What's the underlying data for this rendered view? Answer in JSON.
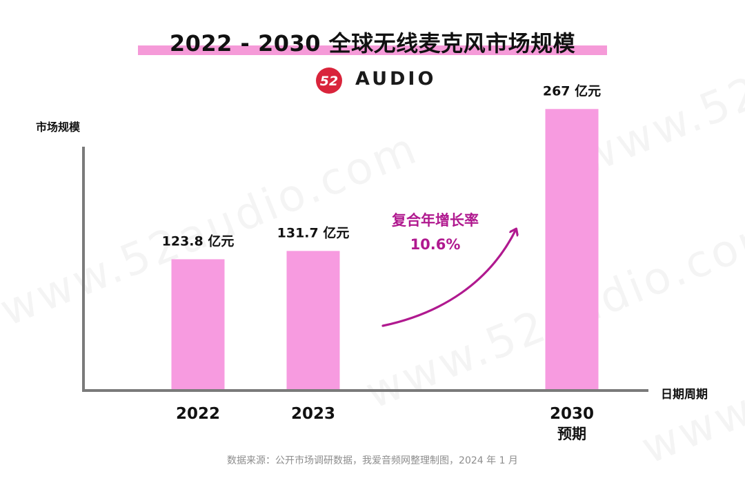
{
  "title": "2022 - 2030 全球无线麦克风市场规模",
  "logo": {
    "mark_text": "52",
    "text": "AUDIO"
  },
  "watermark_text": "www.52audio.com",
  "source_note": "数据来源：公开市场调研数据，我爱音频网整理制图，2024 年 1 月",
  "colors": {
    "bar": "#f79be0",
    "accent": "#b0198f",
    "title_highlight": "#f59ad8",
    "axis": "#7a7a7a",
    "logo_red": "#d9243b"
  },
  "annotation": {
    "line1": "复合年增长率",
    "line2": "10.6%"
  },
  "chart_data": {
    "type": "bar",
    "ylabel": "市场规模",
    "xlabel": "日期周期",
    "categories": [
      "2022",
      "2023",
      "2030"
    ],
    "category_sublabels": [
      "",
      "",
      "预期"
    ],
    "values": [
      123.8,
      131.7,
      267
    ],
    "value_labels": [
      "123.8 亿元",
      "131.7 亿元",
      "267 亿元"
    ],
    "unit": "亿元",
    "ylim": [
      0,
      300
    ],
    "grid": false,
    "legend": "none"
  }
}
